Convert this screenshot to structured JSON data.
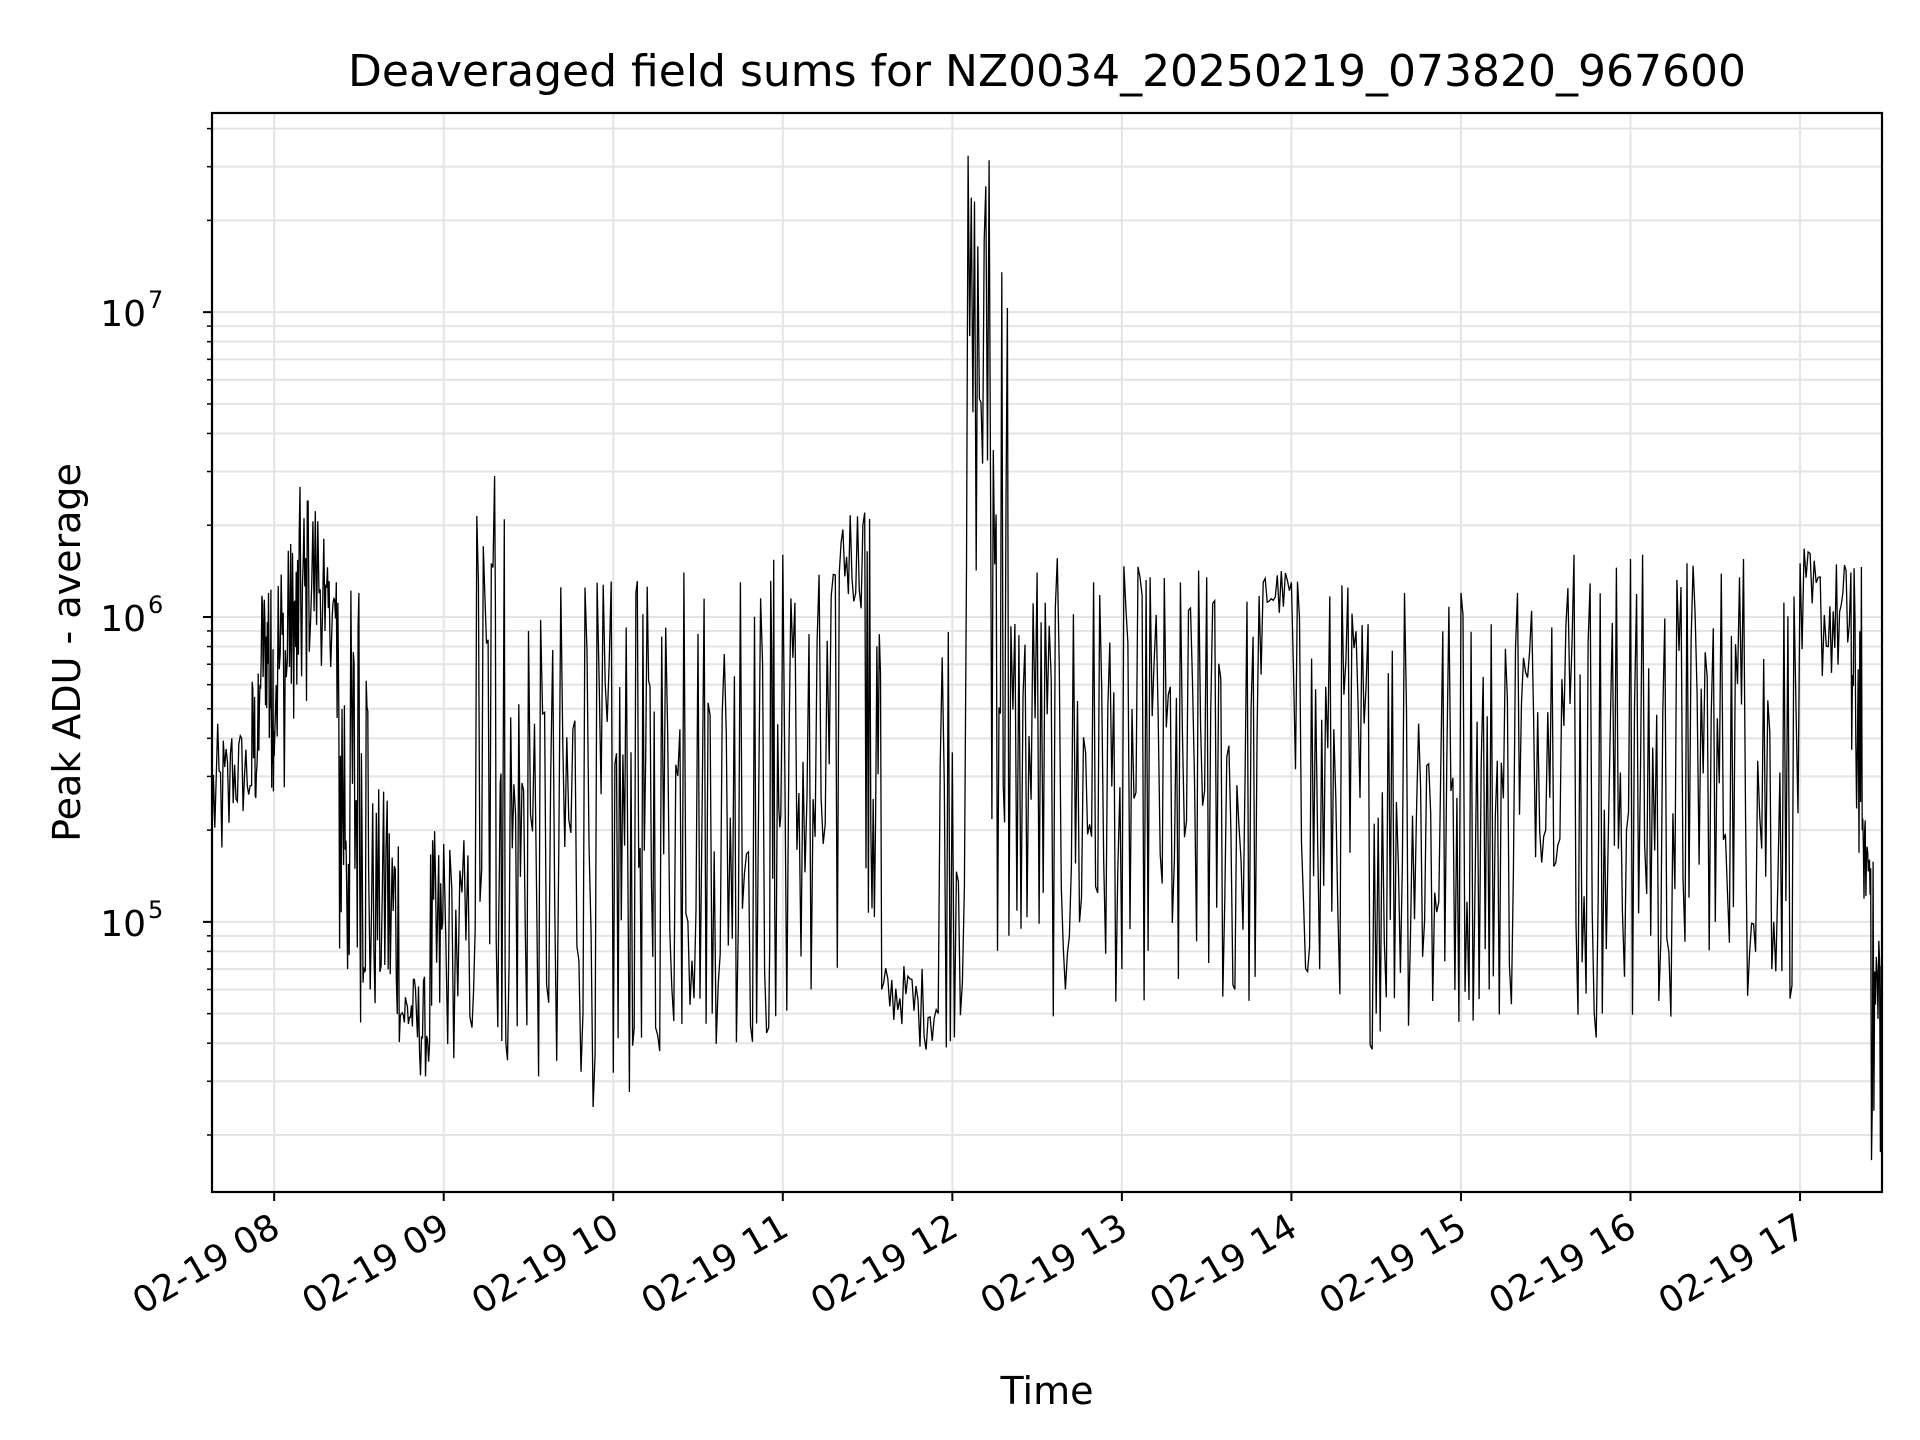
{
  "chart_data": {
    "type": "line",
    "title": "Deaveraged field sums for NZ0034_20250219_073820_967600",
    "xlabel": "Time",
    "ylabel": "Peak ADU - average",
    "x_scale": "time",
    "y_scale": "log",
    "xlim": [
      "2025-02-19 07:38",
      "2025-02-19 17:29"
    ],
    "ylim": [
      13000,
      45000000
    ],
    "grid": true,
    "x_ticks": [
      "02-19 08",
      "02-19 09",
      "02-19 10",
      "02-19 11",
      "02-19 12",
      "02-19 13",
      "02-19 14",
      "02-19 15",
      "02-19 16",
      "02-19 17"
    ],
    "y_ticks": [
      {
        "base": "10",
        "exp": "5",
        "value": 100000
      },
      {
        "base": "10",
        "exp": "6",
        "value": 1000000
      },
      {
        "base": "10",
        "exp": "7",
        "value": 10000000
      }
    ],
    "line_color": "#000000",
    "series": [
      {
        "x": [
          "2025-02-19 07:38",
          "2025-02-19 07:45",
          "2025-02-19 07:52",
          "2025-02-19 07:55",
          "2025-02-19 07:58",
          "2025-02-19 08:00",
          "2025-02-19 08:05",
          "2025-02-19 08:08",
          "2025-02-19 08:12",
          "2025-02-19 08:18",
          "2025-02-19 08:22",
          "2025-02-19 08:26",
          "2025-02-19 08:30",
          "2025-02-19 08:34",
          "2025-02-19 08:40",
          "2025-02-19 08:45",
          "2025-02-19 08:50",
          "2025-02-19 08:55",
          "2025-02-19 09:00",
          "2025-02-19 09:10",
          "2025-02-19 09:18",
          "2025-02-19 09:22",
          "2025-02-19 09:30",
          "2025-02-19 09:40",
          "2025-02-19 09:50",
          "2025-02-19 10:00",
          "2025-02-19 10:08",
          "2025-02-19 10:15",
          "2025-02-19 10:25",
          "2025-02-19 10:35",
          "2025-02-19 10:45",
          "2025-02-19 10:55",
          "2025-02-19 11:00",
          "2025-02-19 11:10",
          "2025-02-19 11:20",
          "2025-02-19 11:29",
          "2025-02-19 11:35",
          "2025-02-19 11:45",
          "2025-02-19 11:55",
          "2025-02-19 12:05",
          "2025-02-19 12:13",
          "2025-02-19 12:20",
          "2025-02-19 12:30",
          "2025-02-19 12:40",
          "2025-02-19 12:50",
          "2025-02-19 13:00",
          "2025-02-19 13:10",
          "2025-02-19 13:20",
          "2025-02-19 13:30",
          "2025-02-19 13:40",
          "2025-02-19 13:50",
          "2025-02-19 14:00",
          "2025-02-19 14:10",
          "2025-02-19 14:20",
          "2025-02-19 14:30",
          "2025-02-19 14:40",
          "2025-02-19 14:50",
          "2025-02-19 15:00",
          "2025-02-19 15:10",
          "2025-02-19 15:20",
          "2025-02-19 15:30",
          "2025-02-19 15:40",
          "2025-02-19 15:50",
          "2025-02-19 16:00",
          "2025-02-19 16:10",
          "2025-02-19 16:20",
          "2025-02-19 16:30",
          "2025-02-19 16:40",
          "2025-02-19 16:50",
          "2025-02-19 17:00",
          "2025-02-19 17:10",
          "2025-02-19 17:18",
          "2025-02-19 17:22",
          "2025-02-19 17:25",
          "2025-02-19 17:29"
        ],
        "y": [
          190000,
          400000,
          280000,
          600000,
          1200000,
          350000,
          1650000,
          600000,
          2400000,
          900000,
          1300000,
          70000,
          1200000,
          60000,
          250000,
          50000,
          60000,
          40000,
          180000,
          45000,
          2900000,
          40000,
          900000,
          35000,
          1250000,
          32000,
          1200000,
          45000,
          1400000,
          50000,
          1300000,
          45000,
          1600000,
          60000,
          1400000,
          2200000,
          60000,
          65000,
          50000,
          1450000,
          31500000,
          90000,
          1400000,
          60000,
          1300000,
          70000,
          1350000,
          65000,
          1350000,
          60000,
          1300000,
          1300000,
          70000,
          1250000,
          50000,
          1200000,
          55000,
          1200000,
          60000,
          1200000,
          200000,
          1600000,
          50000,
          1550000,
          55000,
          1500000,
          100000,
          1550000,
          70000,
          1500000,
          800000,
          1400000,
          200000,
          150000,
          20000
        ]
      }
    ]
  }
}
